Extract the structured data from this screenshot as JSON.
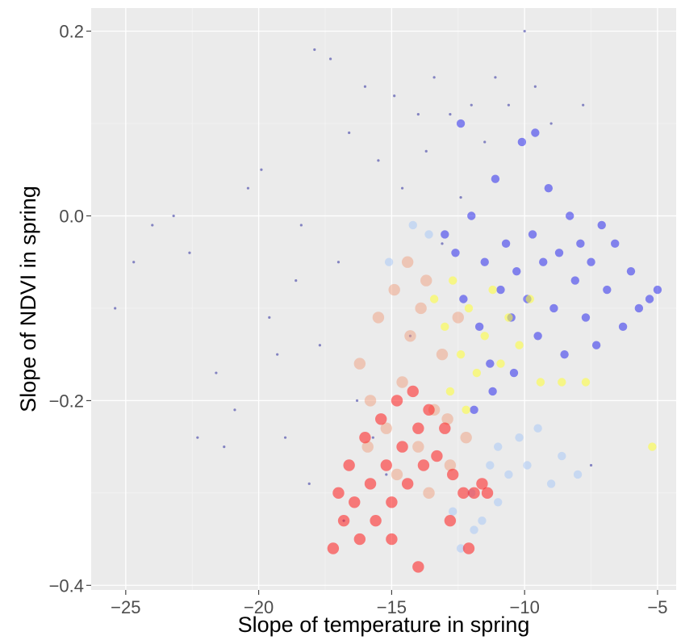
{
  "chart_data": {
    "type": "scatter",
    "title": "",
    "xlabel": "Slope of temperature in spring",
    "ylabel": "Slope of NDVI in spring",
    "xlim": [
      -26.3,
      -4.3
    ],
    "ylim": [
      -0.405,
      0.225
    ],
    "x_ticks": [
      -25,
      -20,
      -15,
      -10,
      -5
    ],
    "y_ticks": [
      -0.4,
      -0.2,
      0.0,
      0.2
    ],
    "x_tick_labels": [
      "−25",
      "−20",
      "−15",
      "−10",
      "−5"
    ],
    "y_tick_labels": [
      "−0.4",
      "−0.2",
      "0.0",
      "0.2"
    ],
    "grid": true,
    "legend": "none",
    "background": "#ebebeb",
    "series": [
      {
        "color": "#2e2e9e",
        "opacity": 0.55,
        "marker": "small",
        "points": [
          [
            -25.4,
            -0.1
          ],
          [
            -24.7,
            -0.05
          ],
          [
            -24.0,
            -0.01
          ],
          [
            -23.2,
            0.0
          ],
          [
            -22.6,
            -0.04
          ],
          [
            -22.3,
            -0.24
          ],
          [
            -21.6,
            -0.17
          ],
          [
            -21.3,
            -0.25
          ],
          [
            -20.9,
            -0.21
          ],
          [
            -20.4,
            0.03
          ],
          [
            -19.9,
            0.05
          ],
          [
            -19.6,
            -0.11
          ],
          [
            -19.3,
            -0.15
          ],
          [
            -19.0,
            -0.24
          ],
          [
            -18.6,
            -0.07
          ],
          [
            -18.4,
            -0.01
          ],
          [
            -18.1,
            -0.29
          ],
          [
            -17.9,
            0.18
          ],
          [
            -17.7,
            -0.14
          ],
          [
            -17.3,
            0.17
          ],
          [
            -17.0,
            -0.05
          ],
          [
            -16.8,
            -0.33
          ],
          [
            -16.6,
            0.09
          ],
          [
            -16.3,
            -0.2
          ],
          [
            -16.0,
            0.14
          ],
          [
            -15.7,
            -0.24
          ],
          [
            -15.5,
            0.06
          ],
          [
            -15.2,
            -0.28
          ],
          [
            -14.9,
            0.13
          ],
          [
            -14.6,
            0.03
          ],
          [
            -14.3,
            -0.13
          ],
          [
            -14.0,
            0.11
          ],
          [
            -13.7,
            0.07
          ],
          [
            -13.4,
            0.15
          ],
          [
            -13.1,
            -0.03
          ],
          [
            -12.8,
            0.11
          ],
          [
            -12.4,
            0.02
          ],
          [
            -12.0,
            0.12
          ],
          [
            -11.5,
            0.08
          ],
          [
            -11.1,
            0.15
          ],
          [
            -10.6,
            0.12
          ],
          [
            -10.0,
            0.2
          ],
          [
            -9.6,
            0.14
          ],
          [
            -9.0,
            0.1
          ],
          [
            -7.8,
            0.12
          ],
          [
            -7.5,
            -0.27
          ]
        ]
      },
      {
        "color": "#0000ee",
        "opacity": 0.45,
        "marker": "medium",
        "points": [
          [
            -13.0,
            -0.02
          ],
          [
            -12.6,
            -0.04
          ],
          [
            -12.3,
            -0.09
          ],
          [
            -12.0,
            0.0
          ],
          [
            -11.7,
            -0.12
          ],
          [
            -11.5,
            -0.05
          ],
          [
            -11.3,
            -0.16
          ],
          [
            -11.1,
            0.04
          ],
          [
            -10.9,
            -0.08
          ],
          [
            -10.7,
            -0.03
          ],
          [
            -10.5,
            -0.11
          ],
          [
            -10.3,
            -0.06
          ],
          [
            -10.1,
            0.08
          ],
          [
            -9.9,
            -0.09
          ],
          [
            -9.7,
            -0.02
          ],
          [
            -9.5,
            -0.13
          ],
          [
            -9.3,
            -0.05
          ],
          [
            -9.1,
            0.03
          ],
          [
            -8.9,
            -0.1
          ],
          [
            -8.7,
            -0.04
          ],
          [
            -8.5,
            -0.15
          ],
          [
            -8.3,
            0.0
          ],
          [
            -8.1,
            -0.07
          ],
          [
            -7.9,
            -0.03
          ],
          [
            -7.7,
            -0.11
          ],
          [
            -7.5,
            -0.05
          ],
          [
            -7.3,
            -0.14
          ],
          [
            -7.1,
            -0.01
          ],
          [
            -6.9,
            -0.08
          ],
          [
            -6.6,
            -0.03
          ],
          [
            -6.3,
            -0.12
          ],
          [
            -6.0,
            -0.06
          ],
          [
            -5.7,
            -0.1
          ],
          [
            -5.3,
            -0.09
          ],
          [
            -5.0,
            -0.08
          ],
          [
            -11.9,
            -0.21
          ],
          [
            -11.2,
            -0.19
          ],
          [
            -10.4,
            -0.17
          ],
          [
            -9.6,
            0.09
          ],
          [
            -12.4,
            0.1
          ]
        ]
      },
      {
        "color": "#a9c9f5",
        "opacity": 0.55,
        "marker": "medium",
        "points": [
          [
            -15.1,
            -0.05
          ],
          [
            -14.2,
            -0.01
          ],
          [
            -13.6,
            -0.02
          ],
          [
            -12.7,
            -0.32
          ],
          [
            -12.4,
            -0.36
          ],
          [
            -12.0,
            -0.3
          ],
          [
            -11.6,
            -0.33
          ],
          [
            -11.3,
            -0.27
          ],
          [
            -11.0,
            -0.25
          ],
          [
            -10.6,
            -0.28
          ],
          [
            -10.2,
            -0.24
          ],
          [
            -9.9,
            -0.27
          ],
          [
            -9.5,
            -0.23
          ],
          [
            -9.0,
            -0.29
          ],
          [
            -8.6,
            -0.26
          ],
          [
            -8.0,
            -0.28
          ],
          [
            -11.9,
            -0.34
          ],
          [
            -11.0,
            -0.31
          ]
        ]
      },
      {
        "color": "#ffff33",
        "opacity": 0.55,
        "marker": "medium",
        "points": [
          [
            -13.4,
            -0.09
          ],
          [
            -13.0,
            -0.12
          ],
          [
            -12.7,
            -0.07
          ],
          [
            -12.4,
            -0.15
          ],
          [
            -12.1,
            -0.1
          ],
          [
            -11.8,
            -0.17
          ],
          [
            -11.5,
            -0.13
          ],
          [
            -11.2,
            -0.08
          ],
          [
            -10.9,
            -0.16
          ],
          [
            -10.6,
            -0.11
          ],
          [
            -10.2,
            -0.14
          ],
          [
            -9.8,
            -0.09
          ],
          [
            -9.4,
            -0.18
          ],
          [
            -8.6,
            -0.18
          ],
          [
            -7.7,
            -0.18
          ],
          [
            -5.2,
            -0.25
          ],
          [
            -12.8,
            -0.19
          ],
          [
            -12.2,
            -0.21
          ]
        ]
      },
      {
        "color": "#f0a080",
        "opacity": 0.5,
        "marker": "large",
        "points": [
          [
            -16.2,
            -0.16
          ],
          [
            -15.8,
            -0.2
          ],
          [
            -15.5,
            -0.11
          ],
          [
            -15.2,
            -0.23
          ],
          [
            -14.9,
            -0.08
          ],
          [
            -14.6,
            -0.18
          ],
          [
            -14.3,
            -0.13
          ],
          [
            -14.0,
            -0.25
          ],
          [
            -13.7,
            -0.07
          ],
          [
            -13.4,
            -0.21
          ],
          [
            -13.1,
            -0.15
          ],
          [
            -12.8,
            -0.27
          ],
          [
            -12.5,
            -0.11
          ],
          [
            -12.2,
            -0.24
          ],
          [
            -15.9,
            -0.25
          ],
          [
            -14.8,
            -0.28
          ],
          [
            -13.6,
            -0.3
          ],
          [
            -12.9,
            -0.22
          ],
          [
            -14.4,
            -0.05
          ],
          [
            -13.9,
            -0.1
          ]
        ]
      },
      {
        "color": "#ff1a1a",
        "opacity": 0.55,
        "marker": "large",
        "points": [
          [
            -17.2,
            -0.36
          ],
          [
            -17.0,
            -0.3
          ],
          [
            -16.8,
            -0.33
          ],
          [
            -16.6,
            -0.27
          ],
          [
            -16.4,
            -0.31
          ],
          [
            -16.2,
            -0.35
          ],
          [
            -16.0,
            -0.24
          ],
          [
            -15.8,
            -0.29
          ],
          [
            -15.6,
            -0.33
          ],
          [
            -15.4,
            -0.22
          ],
          [
            -15.2,
            -0.27
          ],
          [
            -15.0,
            -0.31
          ],
          [
            -14.8,
            -0.2
          ],
          [
            -14.6,
            -0.25
          ],
          [
            -14.4,
            -0.29
          ],
          [
            -14.2,
            -0.19
          ],
          [
            -14.0,
            -0.23
          ],
          [
            -13.8,
            -0.27
          ],
          [
            -13.6,
            -0.21
          ],
          [
            -13.3,
            -0.26
          ],
          [
            -13.0,
            -0.23
          ],
          [
            -12.7,
            -0.28
          ],
          [
            -12.3,
            -0.3
          ],
          [
            -11.9,
            -0.3
          ],
          [
            -11.4,
            -0.3
          ],
          [
            -14.0,
            -0.38
          ],
          [
            -15.0,
            -0.35
          ],
          [
            -12.8,
            -0.33
          ],
          [
            -12.1,
            -0.36
          ],
          [
            -11.6,
            -0.29
          ]
        ]
      }
    ]
  }
}
